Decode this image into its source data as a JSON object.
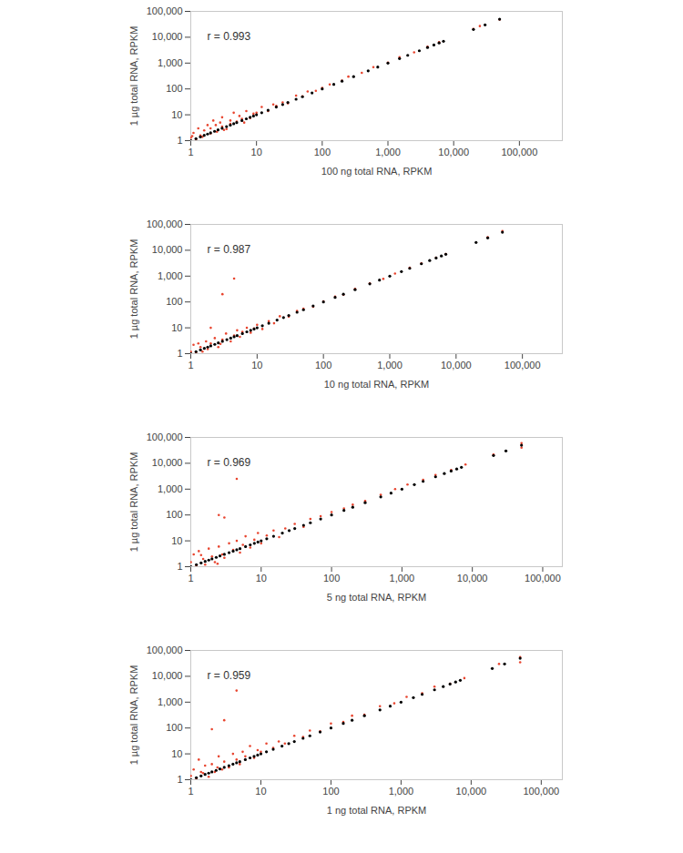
{
  "chart_data": [
    {
      "type": "scatter",
      "log": true,
      "grid": false,
      "annotations": [
        "r = 0.993"
      ],
      "x_label": "100 ng total RNA, RPKM",
      "y_label": "1 µg total RNA, RPKM",
      "xlim": [
        1,
        450000
      ],
      "ylim": [
        1,
        100000
      ],
      "xticks": [
        1,
        10,
        100,
        {
          "value": 1000,
          "label": "1,000"
        },
        {
          "value": 10000,
          "label": "10,000"
        },
        {
          "value": 100000,
          "label": "100,000"
        }
      ],
      "yticks": [
        1,
        10,
        100,
        {
          "value": 1000,
          "label": "1,000"
        },
        {
          "value": 10000,
          "label": "10,000"
        },
        {
          "value": 100000,
          "label": "100,000"
        }
      ],
      "series": [
        {
          "color": "#e8452f",
          "marker": "circle",
          "x": [
            1,
            1.1,
            1.2,
            1.3,
            1.5,
            1.6,
            1.8,
            2,
            2,
            2.2,
            2.5,
            2.8,
            3,
            3,
            3.5,
            4,
            4,
            4.5,
            5,
            5.5,
            6,
            7,
            8,
            9,
            10,
            12,
            15,
            18,
            20,
            25,
            30,
            40,
            50,
            60,
            80,
            100,
            130,
            200,
            250,
            400,
            600,
            1000,
            1500,
            2500,
            4000,
            6000,
            20000,
            25000,
            50000,
            1.4,
            2.4,
            3.2,
            6.5,
            1.05
          ],
          "values": [
            1.3,
            2,
            1.1,
            3,
            1.4,
            2.5,
            4,
            1.9,
            3,
            6,
            2.2,
            5,
            3.5,
            8,
            2.8,
            6,
            4.5,
            12,
            5.5,
            9,
            7,
            14,
            7.5,
            11,
            12,
            20,
            14,
            25,
            22,
            30,
            28,
            55,
            52,
            80,
            85,
            110,
            150,
            210,
            300,
            420,
            700,
            1050,
            1700,
            2600,
            4300,
            6500,
            21000,
            27000,
            48000,
            1.6,
            4,
            2.6,
            5,
            1.5
          ]
        },
        {
          "color": "#000000",
          "marker": "circle",
          "x": [
            1,
            1.2,
            1.4,
            1.6,
            1.8,
            2,
            2.3,
            2.6,
            3,
            3.5,
            4,
            4.5,
            5,
            6,
            7,
            8,
            9,
            10,
            12,
            15,
            20,
            25,
            30,
            40,
            50,
            70,
            100,
            150,
            200,
            300,
            500,
            700,
            1000,
            1500,
            2000,
            3000,
            4000,
            5000,
            6000,
            7000,
            20000,
            30000,
            50000
          ],
          "values": [
            1,
            1.2,
            1.4,
            1.6,
            1.8,
            2,
            2.3,
            2.6,
            3,
            3.5,
            4,
            4.5,
            5,
            6,
            7,
            8,
            9,
            10,
            12,
            15,
            20,
            25,
            30,
            40,
            50,
            70,
            100,
            150,
            200,
            300,
            500,
            700,
            1000,
            1500,
            2000,
            3000,
            4000,
            5000,
            6000,
            7000,
            20000,
            30000,
            50000
          ]
        }
      ]
    },
    {
      "type": "scatter",
      "log": true,
      "grid": false,
      "annotations": [
        "r = 0.987"
      ],
      "x_label": "10 ng total RNA, RPKM",
      "y_label": "1 µg total RNA, RPKM",
      "xlim": [
        1,
        400000
      ],
      "ylim": [
        1,
        100000
      ],
      "xticks": [
        1,
        10,
        100,
        {
          "value": 1000,
          "label": "1,000"
        },
        {
          "value": 10000,
          "label": "10,000"
        },
        {
          "value": 100000,
          "label": "100,000"
        }
      ],
      "yticks": [
        1,
        10,
        100,
        {
          "value": 1000,
          "label": "1,000"
        },
        {
          "value": 10000,
          "label": "10,000"
        },
        {
          "value": 100000,
          "label": "100,000"
        }
      ],
      "series": [
        {
          "color": "#e8452f",
          "marker": "circle",
          "x": [
            1,
            1.1,
            1.2,
            1.3,
            1.5,
            1.7,
            1.8,
            2,
            2,
            2.3,
            2.6,
            3,
            3,
            3.4,
            4,
            4.5,
            4.5,
            5,
            5.5,
            6,
            7,
            8,
            9,
            10,
            12,
            15,
            18,
            22,
            30,
            40,
            50,
            70,
            100,
            150,
            200,
            300,
            500,
            800,
            1200,
            2000,
            3000,
            5000,
            7000,
            30000,
            50000,
            1.4,
            2.8
          ],
          "values": [
            1.2,
            2.2,
            1.05,
            2.5,
            1.2,
            3,
            1.5,
            10,
            2.5,
            4,
            1.8,
            200,
            3.5,
            6,
            3,
            800,
            5,
            8,
            4.5,
            7,
            10,
            6.5,
            9.5,
            13,
            9,
            18,
            15,
            28,
            27,
            45,
            55,
            65,
            105,
            160,
            190,
            320,
            520,
            780,
            1250,
            2100,
            3100,
            5200,
            7100,
            32000,
            55000,
            1.8,
            2.4
          ]
        },
        {
          "color": "#000000",
          "marker": "circle",
          "x": [
            1,
            1.2,
            1.4,
            1.6,
            1.8,
            2,
            2.3,
            2.6,
            3,
            3.5,
            4,
            4.5,
            5,
            6,
            7,
            8,
            9,
            10,
            12,
            15,
            20,
            25,
            30,
            40,
            50,
            70,
            100,
            150,
            200,
            300,
            500,
            700,
            1000,
            1500,
            2000,
            3000,
            4000,
            5000,
            6000,
            7000,
            20000,
            30000,
            50000
          ],
          "values": [
            1,
            1.2,
            1.4,
            1.6,
            1.8,
            2,
            2.3,
            2.6,
            3,
            3.5,
            4,
            4.5,
            5,
            6,
            7,
            8,
            9,
            10,
            12,
            15,
            20,
            25,
            30,
            40,
            50,
            70,
            100,
            150,
            200,
            300,
            500,
            700,
            1000,
            1500,
            2000,
            3000,
            4000,
            5000,
            6000,
            7000,
            20000,
            30000,
            50000
          ]
        }
      ]
    },
    {
      "type": "scatter",
      "log": true,
      "grid": false,
      "annotations": [
        "r = 0.969"
      ],
      "x_label": "5 ng total RNA, RPKM",
      "y_label": "1 µg total RNA, RPKM",
      "xlim": [
        1,
        190000
      ],
      "ylim": [
        1,
        100000
      ],
      "xticks": [
        1,
        10,
        100,
        {
          "value": 1000,
          "label": "1,000"
        },
        {
          "value": 10000,
          "label": "10,000"
        },
        {
          "value": 100000,
          "label": "100,000"
        }
      ],
      "yticks": [
        1,
        10,
        100,
        {
          "value": 1000,
          "label": "1,000"
        },
        {
          "value": 10000,
          "label": "10,000"
        },
        {
          "value": 100000,
          "label": "100,000"
        }
      ],
      "series": [
        {
          "color": "#e8452f",
          "marker": "circle",
          "x": [
            1,
            1.1,
            1.2,
            1.3,
            1.5,
            1.6,
            1.8,
            2,
            2.2,
            2.5,
            2.5,
            2.8,
            3,
            3,
            3.5,
            4,
            4.5,
            4.5,
            5,
            5.5,
            6,
            7,
            8,
            9,
            10,
            12,
            15,
            18,
            22,
            30,
            40,
            50,
            70,
            100,
            150,
            200,
            300,
            500,
            800,
            1200,
            2000,
            3000,
            5000,
            8000,
            20000,
            50000,
            50000,
            1.4,
            2.4
          ],
          "values": [
            1.5,
            3,
            1.1,
            4,
            2,
            1.2,
            5,
            2.5,
            1.5,
            100,
            6,
            3,
            80,
            2.2,
            8,
            4.5,
            2500,
            10,
            3.5,
            7,
            15,
            5.5,
            11,
            20,
            8,
            16,
            25,
            14,
            30,
            45,
            35,
            70,
            90,
            130,
            180,
            250,
            350,
            600,
            1000,
            1500,
            2300,
            3500,
            5500,
            9000,
            22000,
            60000,
            40000,
            2.8,
            1.3
          ]
        },
        {
          "color": "#000000",
          "marker": "circle",
          "x": [
            1,
            1.2,
            1.4,
            1.6,
            1.8,
            2,
            2.3,
            2.6,
            3,
            3.5,
            4,
            4.5,
            5,
            6,
            7,
            8,
            9,
            10,
            12,
            15,
            20,
            25,
            30,
            40,
            50,
            70,
            100,
            150,
            200,
            300,
            500,
            700,
            1000,
            1500,
            2000,
            3000,
            4000,
            5000,
            6000,
            7000,
            20000,
            30000,
            50000
          ],
          "values": [
            1,
            1.2,
            1.4,
            1.6,
            1.8,
            2,
            2.3,
            2.6,
            3,
            3.5,
            4,
            4.5,
            5,
            6,
            7,
            8,
            9,
            10,
            12,
            15,
            20,
            25,
            30,
            40,
            50,
            70,
            100,
            150,
            200,
            300,
            500,
            700,
            1000,
            1500,
            2000,
            3000,
            4000,
            5000,
            6000,
            7000,
            20000,
            30000,
            50000
          ]
        }
      ]
    },
    {
      "type": "scatter",
      "log": true,
      "grid": false,
      "annotations": [
        "r = 0.959"
      ],
      "x_label": "1 ng total RNA, RPKM",
      "y_label": "1 µg total RNA, RPKM",
      "xlim": [
        1,
        200000
      ],
      "ylim": [
        1,
        100000
      ],
      "xticks": [
        1,
        10,
        100,
        {
          "value": 1000,
          "label": "1,000"
        },
        {
          "value": 10000,
          "label": "10,000"
        },
        {
          "value": 100000,
          "label": "100,000"
        }
      ],
      "yticks": [
        1,
        10,
        100,
        {
          "value": 1000,
          "label": "1,000"
        },
        {
          "value": 10000,
          "label": "10,000"
        },
        {
          "value": 100000,
          "label": "100,000"
        }
      ],
      "series": [
        {
          "color": "#e8452f",
          "marker": "circle",
          "x": [
            1,
            1.1,
            1.2,
            1.3,
            1.5,
            1.6,
            1.8,
            2,
            2,
            2.2,
            2.5,
            2.8,
            3,
            3,
            3.5,
            4,
            4.5,
            4.5,
            5,
            5.5,
            6,
            7,
            8,
            9,
            10,
            12,
            15,
            18,
            22,
            30,
            40,
            50,
            70,
            100,
            150,
            200,
            300,
            500,
            800,
            1200,
            2000,
            3000,
            5000,
            8000,
            25000,
            50000,
            50000,
            1.4,
            2.4
          ],
          "values": [
            1.4,
            2.5,
            1.1,
            6,
            1.8,
            3.5,
            1.3,
            90,
            4,
            2,
            8,
            2.5,
            200,
            5,
            3,
            10,
            2800,
            6,
            4,
            12,
            8,
            20,
            7,
            14,
            12,
            25,
            17,
            30,
            25,
            50,
            45,
            80,
            75,
            150,
            170,
            300,
            330,
            700,
            900,
            1600,
            2200,
            4000,
            5200,
            8500,
            30000,
            55000,
            35000,
            2,
            3
          ]
        },
        {
          "color": "#000000",
          "marker": "circle",
          "x": [
            1,
            1.2,
            1.4,
            1.6,
            1.8,
            2,
            2.3,
            2.6,
            3,
            3.5,
            4,
            4.5,
            5,
            6,
            7,
            8,
            9,
            10,
            12,
            15,
            20,
            25,
            30,
            40,
            50,
            70,
            100,
            150,
            200,
            300,
            500,
            700,
            1000,
            1500,
            2000,
            3000,
            4000,
            5000,
            6000,
            7000,
            20000,
            30000,
            50000
          ],
          "values": [
            1,
            1.2,
            1.4,
            1.6,
            1.8,
            2,
            2.3,
            2.6,
            3,
            3.5,
            4,
            4.5,
            5,
            6,
            7,
            8,
            9,
            10,
            12,
            15,
            20,
            25,
            30,
            40,
            50,
            70,
            100,
            150,
            200,
            300,
            500,
            700,
            1000,
            1500,
            2000,
            3000,
            4000,
            5000,
            6000,
            7000,
            20000,
            30000,
            50000
          ]
        }
      ]
    }
  ]
}
